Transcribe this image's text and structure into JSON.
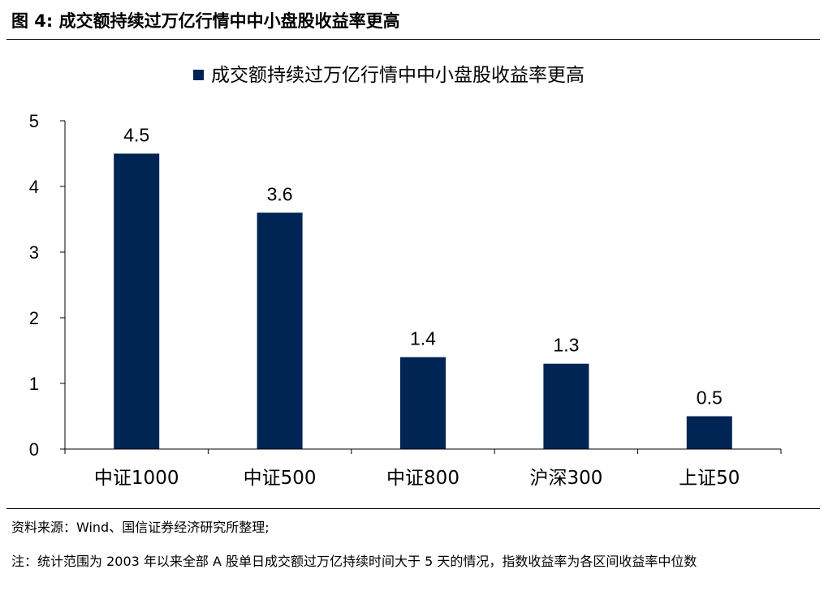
{
  "figure": {
    "title": "图 4:  成交额持续过万亿行情中中小盘股收益率更高"
  },
  "chart_data": {
    "type": "bar",
    "legend": "成交额持续过万亿行情中中小盘股收益率更高",
    "legend_position": "top-center",
    "categories": [
      "中证1000",
      "中证500",
      "中证800",
      "沪深300",
      "上证50"
    ],
    "values": [
      4.5,
      3.6,
      1.4,
      1.3,
      0.5
    ],
    "data_labels": [
      "4.5",
      "3.6",
      "1.4",
      "1.3",
      "0.5"
    ],
    "ylim": [
      0,
      5
    ],
    "yticks": [
      "0",
      "1",
      "2",
      "3",
      "4",
      "5"
    ],
    "grid": false,
    "bar_color": "#002453"
  },
  "footer": {
    "source": "资料来源：Wind、国信证券经济研究所整理;",
    "note": "注：统计范围为 2003 年以来全部 A 股单日成交额过万亿持续时间大于 5 天的情况，指数收益率为各区间收益率中位数"
  }
}
